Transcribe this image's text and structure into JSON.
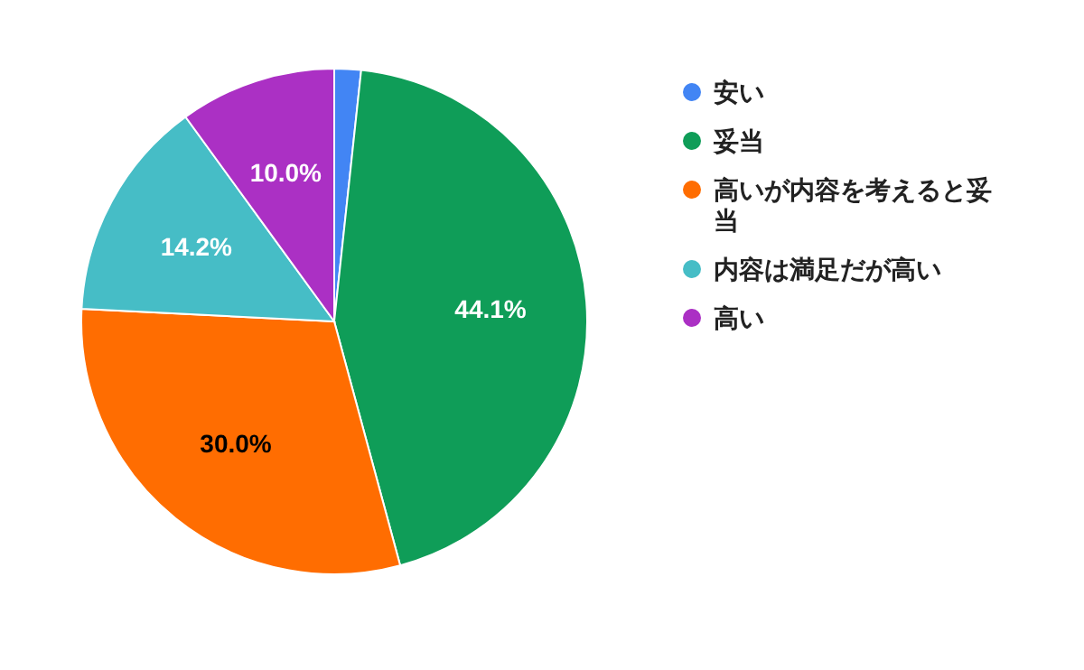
{
  "chart_data": {
    "type": "pie",
    "categories": [
      "安い",
      "妥当",
      "高いが内容を考えると妥当",
      "内容は満足だが高い",
      "高い"
    ],
    "values": [
      1.7,
      44.1,
      30.0,
      14.2,
      10.0
    ],
    "colors": [
      "#4285f4",
      "#0f9d58",
      "#ff6d01",
      "#46bdc6",
      "#ab30c4"
    ],
    "value_labels": [
      null,
      "44.1%",
      "30.0%",
      "14.2%",
      "10.0%"
    ],
    "legend": "right"
  }
}
